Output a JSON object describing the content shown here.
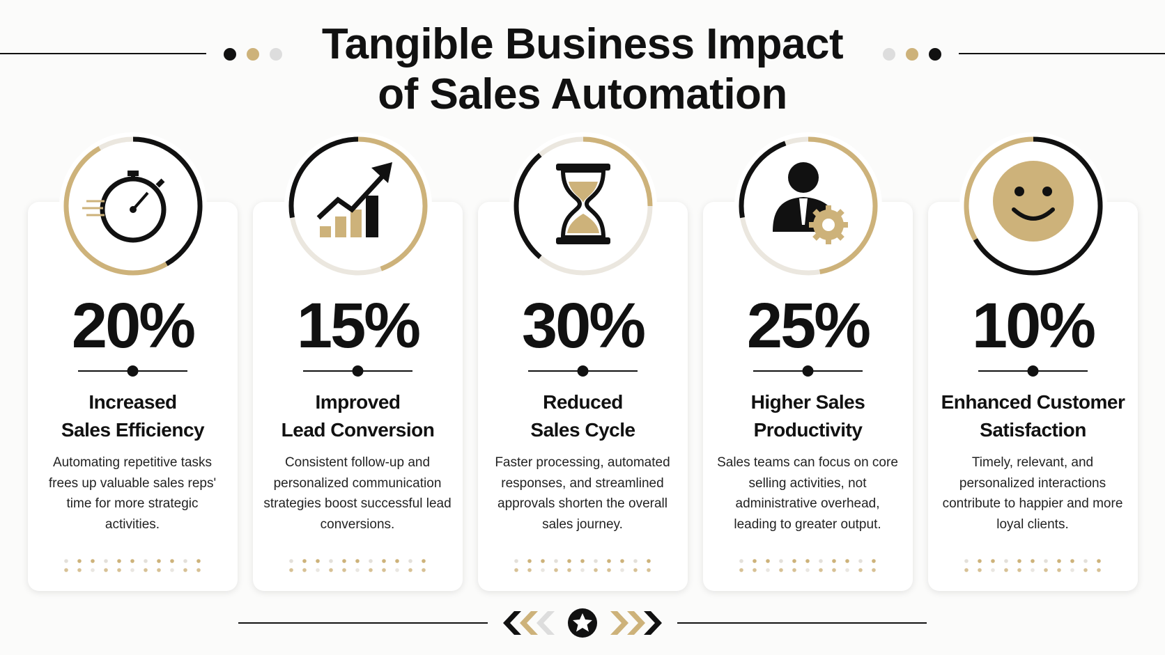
{
  "header": {
    "title": "Tangible Business Impact of Sales Automation"
  },
  "cards": [
    {
      "stat": "20%",
      "heading_lines": [
        "Increased",
        "Sales Efficiency"
      ],
      "description": "Automating repetitive tasks frees up valuable sales reps' time for more strategic activities."
    },
    {
      "stat": "15%",
      "heading_lines": [
        "Improved",
        "Lead Conversion"
      ],
      "description": "Consistent follow-up and personalized communication strategies boost successful lead conversions."
    },
    {
      "stat": "30%",
      "heading_lines": [
        "Reduced",
        "Sales Cycle"
      ],
      "description": "Faster processing, automated responses, and streamlined approvals shorten the overall sales journey."
    },
    {
      "stat": "25%",
      "heading_lines": [
        "Higher Sales",
        "Productivity"
      ],
      "description": "Sales teams can focus on core selling activities, not administrative overhead, leading to greater output."
    },
    {
      "stat": "10%",
      "heading_lines": [
        "Enhanced Customer",
        "Satisfaction"
      ],
      "description": "Timely, relevant, and personalized interactions contribute to happier and more loyal clients."
    }
  ]
}
